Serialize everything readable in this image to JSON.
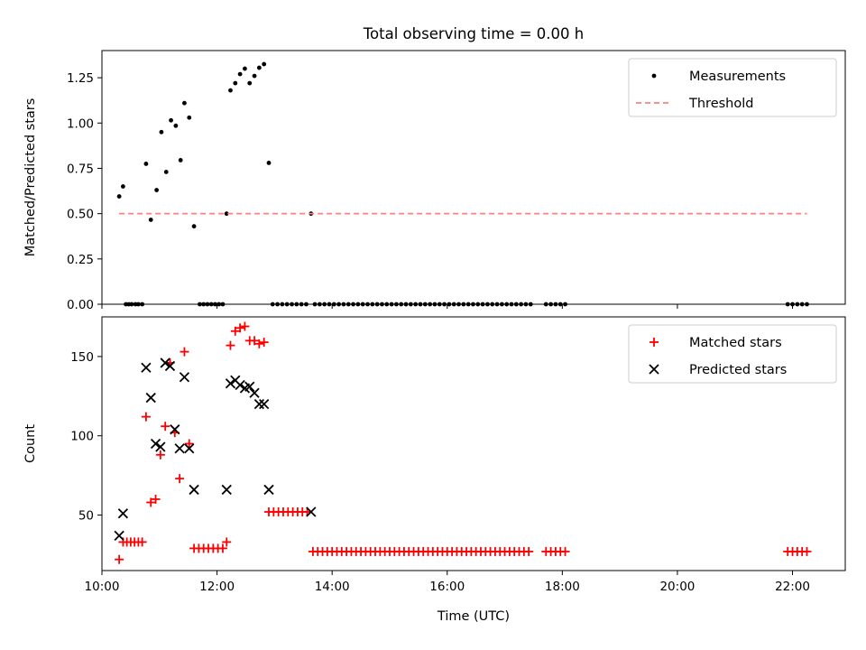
{
  "figure": {
    "title": "Total observing time = 0.00 h"
  },
  "chart_data": [
    {
      "type": "scatter",
      "name": "ratio-panel",
      "ylabel": "Matched/Predicted stars",
      "xlabel": "",
      "xlim": [
        "10:00",
        "22:55"
      ],
      "ylim": [
        0,
        1.4
      ],
      "x_ticks": [
        "10:00",
        "12:00",
        "14:00",
        "16:00",
        "18:00",
        "20:00",
        "22:00"
      ],
      "y_ticks": [
        "0.00",
        "0.25",
        "0.50",
        "0.75",
        "1.00",
        "1.25"
      ],
      "y_tick_values": [
        0,
        0.25,
        0.5,
        0.75,
        1.0,
        1.25
      ],
      "grid": false,
      "legend": "top-right",
      "series": [
        {
          "name": "Measurements",
          "marker": "dot",
          "color": "#000000",
          "points": [
            [
              "10:18",
              0.595
            ],
            [
              "10:22",
              0.65
            ],
            [
              "10:25",
              0
            ],
            [
              "10:28",
              0
            ],
            [
              "10:31",
              0
            ],
            [
              "10:35",
              0
            ],
            [
              "10:38",
              0
            ],
            [
              "10:42",
              0
            ],
            [
              "10:46",
              0.775
            ],
            [
              "10:51",
              0.466
            ],
            [
              "10:57",
              0.63
            ],
            [
              "11:02",
              0.95
            ],
            [
              "11:07",
              0.73
            ],
            [
              "11:12",
              1.015
            ],
            [
              "11:17",
              0.985
            ],
            [
              "11:22",
              0.795
            ],
            [
              "11:26",
              1.11
            ],
            [
              "11:31",
              1.03
            ],
            [
              "11:36",
              0.43
            ],
            [
              "11:42",
              0
            ],
            [
              "11:46",
              0
            ],
            [
              "11:50",
              0
            ],
            [
              "11:54",
              0
            ],
            [
              "11:58",
              0
            ],
            [
              "12:02",
              0
            ],
            [
              "12:06",
              0
            ],
            [
              "12:10",
              0.5
            ],
            [
              "12:14",
              1.18
            ],
            [
              "12:19",
              1.22
            ],
            [
              "12:24",
              1.27
            ],
            [
              "12:29",
              1.3
            ],
            [
              "12:34",
              1.22
            ],
            [
              "12:39",
              1.26
            ],
            [
              "12:44",
              1.305
            ],
            [
              "12:49",
              1.325
            ],
            [
              "12:54",
              0.78
            ],
            [
              "12:58",
              0
            ],
            [
              "13:03",
              0
            ],
            [
              "13:08",
              0
            ],
            [
              "13:13",
              0
            ],
            [
              "13:18",
              0
            ],
            [
              "13:23",
              0
            ],
            [
              "13:28",
              0
            ],
            [
              "13:33",
              0
            ],
            [
              "13:38",
              0.5
            ],
            [
              "13:42",
              0
            ],
            [
              "13:47",
              0
            ],
            [
              "13:52",
              0
            ],
            [
              "13:57",
              0
            ],
            [
              "14:02",
              0
            ],
            [
              "14:07",
              0
            ],
            [
              "14:12",
              0
            ],
            [
              "14:17",
              0
            ],
            [
              "14:22",
              0
            ],
            [
              "14:27",
              0
            ],
            [
              "14:32",
              0
            ],
            [
              "14:37",
              0
            ],
            [
              "14:42",
              0
            ],
            [
              "14:47",
              0
            ],
            [
              "14:52",
              0
            ],
            [
              "14:57",
              0
            ],
            [
              "15:02",
              0
            ],
            [
              "15:07",
              0
            ],
            [
              "15:12",
              0
            ],
            [
              "15:17",
              0
            ],
            [
              "15:22",
              0
            ],
            [
              "15:27",
              0
            ],
            [
              "15:32",
              0
            ],
            [
              "15:37",
              0
            ],
            [
              "15:42",
              0
            ],
            [
              "15:47",
              0
            ],
            [
              "15:52",
              0
            ],
            [
              "15:57",
              0
            ],
            [
              "16:02",
              0
            ],
            [
              "16:07",
              0
            ],
            [
              "16:12",
              0
            ],
            [
              "16:17",
              0
            ],
            [
              "16:22",
              0
            ],
            [
              "16:27",
              0
            ],
            [
              "16:32",
              0
            ],
            [
              "16:37",
              0
            ],
            [
              "16:42",
              0
            ],
            [
              "16:47",
              0
            ],
            [
              "16:52",
              0
            ],
            [
              "16:57",
              0
            ],
            [
              "17:02",
              0
            ],
            [
              "17:07",
              0
            ],
            [
              "17:12",
              0
            ],
            [
              "17:17",
              0
            ],
            [
              "17:22",
              0
            ],
            [
              "17:27",
              0
            ],
            [
              "17:43",
              0
            ],
            [
              "17:48",
              0
            ],
            [
              "17:53",
              0
            ],
            [
              "17:58",
              0
            ],
            [
              "18:03",
              0
            ],
            [
              "21:55",
              0
            ],
            [
              "22:00",
              0
            ],
            [
              "22:05",
              0
            ],
            [
              "22:10",
              0
            ],
            [
              "22:15",
              0
            ]
          ]
        },
        {
          "name": "Threshold",
          "line": "dashed",
          "color": "#ff7f7f",
          "points": [
            [
              "10:18",
              0.5
            ],
            [
              "22:15",
              0.5
            ]
          ]
        }
      ]
    },
    {
      "type": "scatter",
      "name": "count-panel",
      "ylabel": "Count",
      "xlabel": "Time (UTC)",
      "xlim": [
        "10:00",
        "22:55"
      ],
      "ylim": [
        15,
        175
      ],
      "x_ticks": [
        "10:00",
        "12:00",
        "14:00",
        "16:00",
        "18:00",
        "20:00",
        "22:00"
      ],
      "y_ticks": [
        "50",
        "100",
        "150"
      ],
      "y_tick_values": [
        50,
        100,
        150
      ],
      "grid": false,
      "legend": "top-right",
      "series": [
        {
          "name": "Matched stars",
          "marker": "plus",
          "color": "#ff0000",
          "points": [
            [
              "10:18",
              22
            ],
            [
              "10:22",
              33
            ],
            [
              "10:26",
              33
            ],
            [
              "10:30",
              33
            ],
            [
              "10:34",
              33
            ],
            [
              "10:38",
              33
            ],
            [
              "10:42",
              33
            ],
            [
              "10:46",
              112
            ],
            [
              "10:51",
              58
            ],
            [
              "10:56",
              60
            ],
            [
              "11:01",
              88
            ],
            [
              "11:06",
              106
            ],
            [
              "11:11",
              146
            ],
            [
              "11:16",
              102
            ],
            [
              "11:21",
              73
            ],
            [
              "11:26",
              153
            ],
            [
              "11:31",
              95
            ],
            [
              "11:36",
              29
            ],
            [
              "11:41",
              29
            ],
            [
              "11:46",
              29
            ],
            [
              "11:51",
              29
            ],
            [
              "11:56",
              29
            ],
            [
              "12:01",
              29
            ],
            [
              "12:06",
              29
            ],
            [
              "12:10",
              33
            ],
            [
              "12:14",
              157
            ],
            [
              "12:19",
              166
            ],
            [
              "12:24",
              168
            ],
            [
              "12:29",
              169
            ],
            [
              "12:34",
              160
            ],
            [
              "12:39",
              160
            ],
            [
              "12:44",
              158
            ],
            [
              "12:49",
              159
            ],
            [
              "12:54",
              52
            ],
            [
              "12:59",
              52
            ],
            [
              "13:04",
              52
            ],
            [
              "13:09",
              52
            ],
            [
              "13:14",
              52
            ],
            [
              "13:19",
              52
            ],
            [
              "13:24",
              52
            ],
            [
              "13:29",
              52
            ],
            [
              "13:34",
              52
            ],
            [
              "13:40",
              27
            ],
            [
              "13:45",
              27
            ],
            [
              "13:50",
              27
            ],
            [
              "13:55",
              27
            ],
            [
              "14:00",
              27
            ],
            [
              "14:05",
              27
            ],
            [
              "14:10",
              27
            ],
            [
              "14:15",
              27
            ],
            [
              "14:20",
              27
            ],
            [
              "14:25",
              27
            ],
            [
              "14:30",
              27
            ],
            [
              "14:35",
              27
            ],
            [
              "14:40",
              27
            ],
            [
              "14:45",
              27
            ],
            [
              "14:50",
              27
            ],
            [
              "14:55",
              27
            ],
            [
              "15:00",
              27
            ],
            [
              "15:05",
              27
            ],
            [
              "15:10",
              27
            ],
            [
              "15:15",
              27
            ],
            [
              "15:20",
              27
            ],
            [
              "15:25",
              27
            ],
            [
              "15:30",
              27
            ],
            [
              "15:35",
              27
            ],
            [
              "15:40",
              27
            ],
            [
              "15:45",
              27
            ],
            [
              "15:50",
              27
            ],
            [
              "15:55",
              27
            ],
            [
              "16:00",
              27
            ],
            [
              "16:05",
              27
            ],
            [
              "16:10",
              27
            ],
            [
              "16:15",
              27
            ],
            [
              "16:20",
              27
            ],
            [
              "16:25",
              27
            ],
            [
              "16:30",
              27
            ],
            [
              "16:35",
              27
            ],
            [
              "16:40",
              27
            ],
            [
              "16:45",
              27
            ],
            [
              "16:50",
              27
            ],
            [
              "16:55",
              27
            ],
            [
              "17:00",
              27
            ],
            [
              "17:05",
              27
            ],
            [
              "17:10",
              27
            ],
            [
              "17:15",
              27
            ],
            [
              "17:20",
              27
            ],
            [
              "17:25",
              27
            ],
            [
              "17:43",
              27
            ],
            [
              "17:48",
              27
            ],
            [
              "17:53",
              27
            ],
            [
              "17:58",
              27
            ],
            [
              "18:03",
              27
            ],
            [
              "21:55",
              27
            ],
            [
              "22:00",
              27
            ],
            [
              "22:05",
              27
            ],
            [
              "22:10",
              27
            ],
            [
              "22:15",
              27
            ]
          ]
        },
        {
          "name": "Predicted stars",
          "marker": "x",
          "color": "#000000",
          "points": [
            [
              "10:18",
              37
            ],
            [
              "10:22",
              51
            ],
            [
              "10:46",
              143
            ],
            [
              "10:51",
              124
            ],
            [
              "10:56",
              95
            ],
            [
              "11:01",
              93
            ],
            [
              "11:06",
              146
            ],
            [
              "11:11",
              144
            ],
            [
              "11:16",
              104
            ],
            [
              "11:21",
              92
            ],
            [
              "11:26",
              137
            ],
            [
              "11:31",
              92
            ],
            [
              "11:36",
              66
            ],
            [
              "12:10",
              66
            ],
            [
              "12:14",
              133
            ],
            [
              "12:19",
              135
            ],
            [
              "12:24",
              132
            ],
            [
              "12:29",
              130
            ],
            [
              "12:34",
              131
            ],
            [
              "12:39",
              127
            ],
            [
              "12:44",
              120
            ],
            [
              "12:49",
              120
            ],
            [
              "12:54",
              66
            ],
            [
              "13:38",
              52
            ]
          ]
        }
      ]
    }
  ]
}
